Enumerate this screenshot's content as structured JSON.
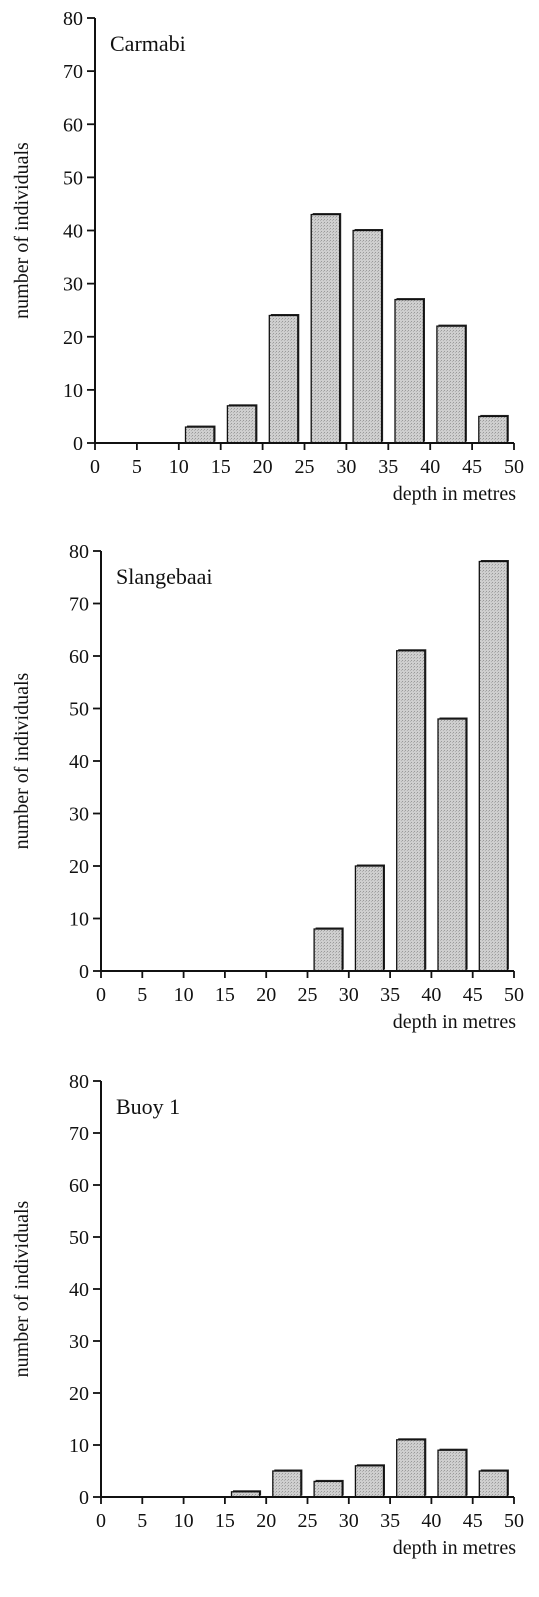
{
  "chart_data": [
    {
      "type": "bar",
      "panel_label": "Carmabi",
      "ylabel": "number of individuals",
      "xlabel": "depth in metres",
      "ylim": [
        0,
        80
      ],
      "xlim": [
        0,
        50
      ],
      "yticks": [
        "0",
        "10",
        "20",
        "30",
        "40",
        "50",
        "60",
        "70",
        "80"
      ],
      "xticks": [
        "0",
        "5",
        "10",
        "15",
        "20",
        "25",
        "30",
        "35",
        "40",
        "45",
        "50"
      ],
      "categories": [
        "0-5",
        "5-10",
        "10-15",
        "15-20",
        "20-25",
        "25-30",
        "30-35",
        "35-40",
        "40-45",
        "45-50"
      ],
      "values": [
        0,
        0,
        3,
        7,
        24,
        43,
        40,
        27,
        22,
        5
      ],
      "bar_color": "#c8c8c8",
      "grid": false
    },
    {
      "type": "bar",
      "panel_label": "Slangebaai",
      "ylabel": "number of individuals",
      "xlabel": "depth in metres",
      "ylim": [
        0,
        80
      ],
      "xlim": [
        0,
        50
      ],
      "yticks": [
        "0",
        "10",
        "20",
        "30",
        "40",
        "50",
        "60",
        "70",
        "80"
      ],
      "xticks": [
        "0",
        "5",
        "10",
        "15",
        "20",
        "25",
        "30",
        "35",
        "40",
        "45",
        "50"
      ],
      "categories": [
        "0-5",
        "5-10",
        "10-15",
        "15-20",
        "20-25",
        "25-30",
        "30-35",
        "35-40",
        "40-45",
        "45-50"
      ],
      "values": [
        0,
        0,
        0,
        0,
        0,
        8,
        20,
        61,
        48,
        78
      ],
      "bar_color": "#c8c8c8",
      "grid": false
    },
    {
      "type": "bar",
      "panel_label": "Buoy 1",
      "ylabel": "number of individuals",
      "xlabel": "depth in metres",
      "ylim": [
        0,
        80
      ],
      "xlim": [
        0,
        50
      ],
      "yticks": [
        "0",
        "10",
        "20",
        "30",
        "40",
        "50",
        "60",
        "70",
        "80"
      ],
      "xticks": [
        "0",
        "5",
        "10",
        "15",
        "20",
        "25",
        "30",
        "35",
        "40",
        "45",
        "50"
      ],
      "categories": [
        "0-5",
        "5-10",
        "10-15",
        "15-20",
        "20-25",
        "25-30",
        "30-35",
        "35-40",
        "40-45",
        "45-50"
      ],
      "values": [
        0,
        0,
        0,
        1,
        5,
        3,
        6,
        11,
        9,
        5
      ],
      "bar_color": "#c8c8c8",
      "grid": false
    }
  ]
}
